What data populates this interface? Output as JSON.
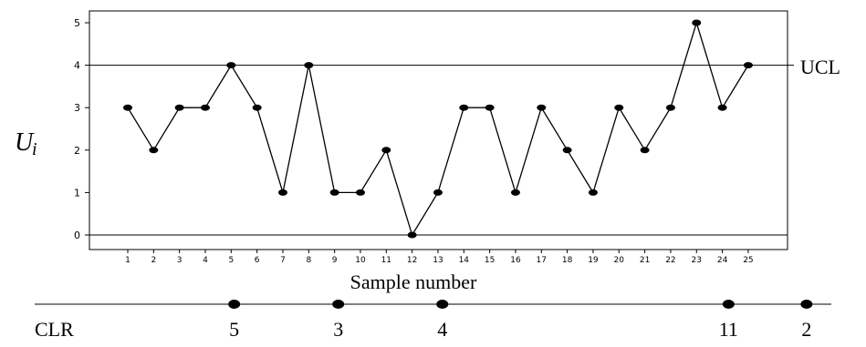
{
  "chart_data": {
    "type": "line",
    "x": [
      1,
      2,
      3,
      4,
      5,
      6,
      7,
      8,
      9,
      10,
      11,
      12,
      13,
      14,
      15,
      16,
      17,
      18,
      19,
      20,
      21,
      22,
      23,
      24,
      25
    ],
    "values": [
      3,
      2,
      3,
      3,
      4,
      3,
      1,
      4,
      1,
      1,
      2,
      0,
      1,
      3,
      3,
      1,
      3,
      2,
      1,
      3,
      2,
      3,
      5,
      3,
      4
    ],
    "xlabel": "Sample number",
    "ylabel": "U",
    "ylabel_sub": "i",
    "yticks": [
      0,
      1,
      2,
      3,
      4,
      5
    ],
    "ylim": [
      0,
      5
    ],
    "xlim": [
      1,
      25
    ],
    "reference_lines": [
      {
        "value": 4,
        "label": "UCL"
      },
      {
        "value": 0,
        "label": ""
      }
    ],
    "grid": false,
    "line_color": "#000000",
    "marker": "filled-ellipse"
  },
  "clr": {
    "label": "CLR",
    "markers": [
      {
        "x": 3,
        "value": "5"
      },
      {
        "x": 7,
        "value": "3"
      },
      {
        "x": 11,
        "value": "4"
      },
      {
        "x": 22,
        "value": "11"
      },
      {
        "x": 25,
        "value": "2"
      }
    ]
  }
}
